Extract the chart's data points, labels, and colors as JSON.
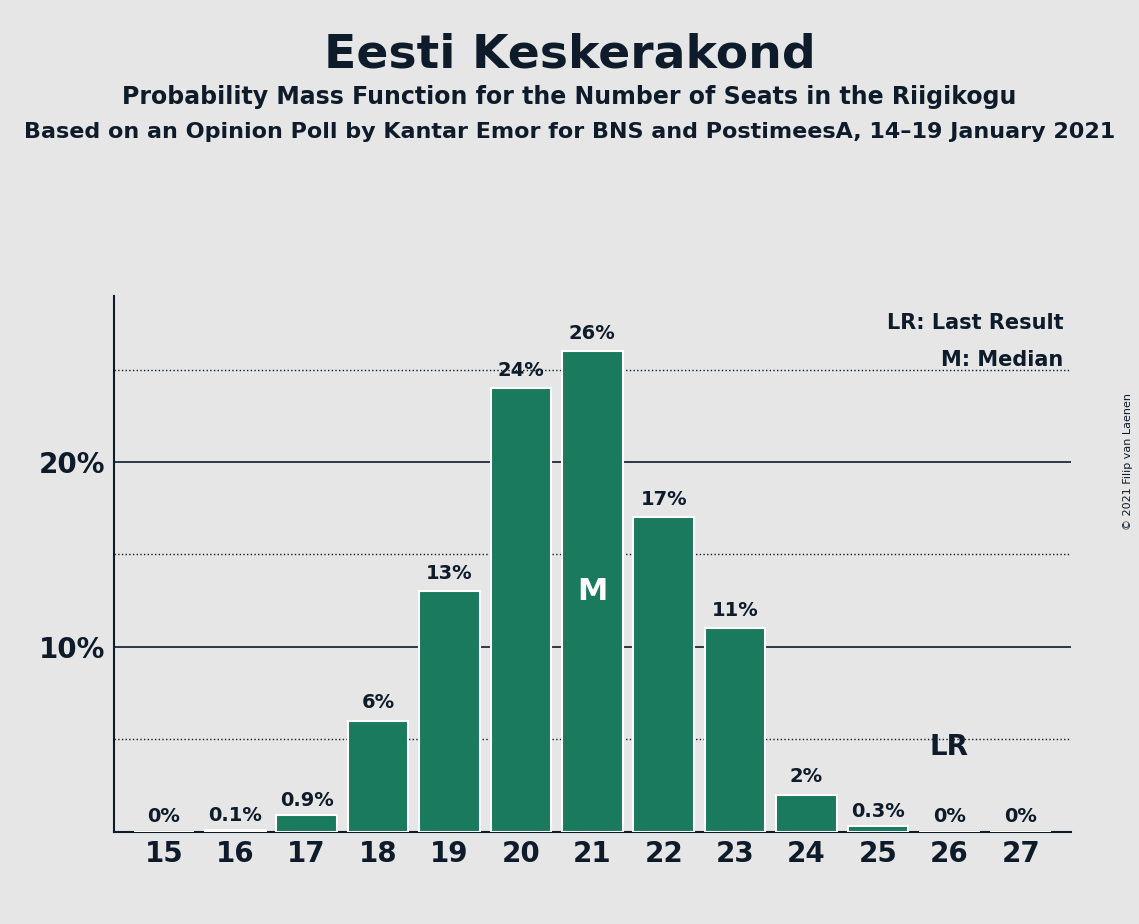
{
  "title": "Eesti Keskerakond",
  "subtitle1": "Probability Mass Function for the Number of Seats in the Riigikogu",
  "subtitle2": "Based on an Opinion Poll by Kantar Emor for BNS and PostimeesA, 14–19 January 2021",
  "copyright": "© 2021 Filip van Laenen",
  "seats": [
    15,
    16,
    17,
    18,
    19,
    20,
    21,
    22,
    23,
    24,
    25,
    26,
    27
  ],
  "probabilities": [
    0.0,
    0.1,
    0.9,
    6.0,
    13.0,
    24.0,
    26.0,
    17.0,
    11.0,
    2.0,
    0.3,
    0.0,
    0.0
  ],
  "bar_color": "#1a7a5e",
  "bar_edge_color": "#ffffff",
  "median_seat": 21,
  "lr_seat": 26,
  "lr_label": "LR",
  "median_label": "M",
  "background_color": "#e6e6e6",
  "text_color": "#0d1b2a",
  "ylim": [
    0,
    29
  ],
  "solid_gridlines": [
    10,
    20
  ],
  "dotted_gridlines": [
    5,
    15,
    25
  ],
  "ytick_labels": [
    "10%",
    "20%"
  ],
  "ytick_values": [
    10,
    20
  ],
  "legend_lr": "LR: Last Result",
  "legend_m": "M: Median",
  "bar_labels": [
    "0%",
    "0.1%",
    "0.9%",
    "6%",
    "13%",
    "24%",
    "26%",
    "17%",
    "11%",
    "2%",
    "0.3%",
    "0%",
    "0%"
  ],
  "title_fontsize": 34,
  "subtitle1_fontsize": 17,
  "subtitle2_fontsize": 16,
  "bar_label_fontsize": 14,
  "tick_fontsize": 20,
  "legend_fontsize": 15,
  "lr_inline_fontsize": 20,
  "median_fontsize": 22
}
